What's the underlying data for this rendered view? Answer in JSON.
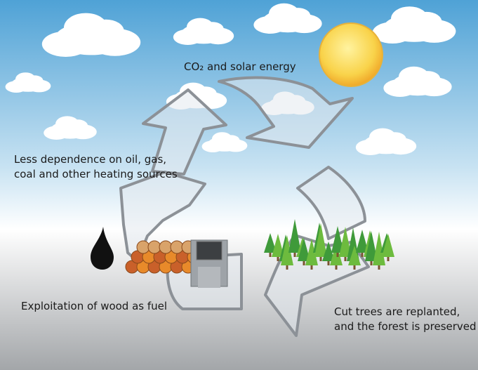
{
  "labels": {
    "top": "CO₂ and solar energy",
    "left": [
      "Less dependence on oil, gas,",
      "coal and other heating sources"
    ],
    "bottom_left": "Exploitation of wood as fuel",
    "bottom_right": [
      "Cut trees are replanted,",
      "and the forest is preserved"
    ]
  }
}
